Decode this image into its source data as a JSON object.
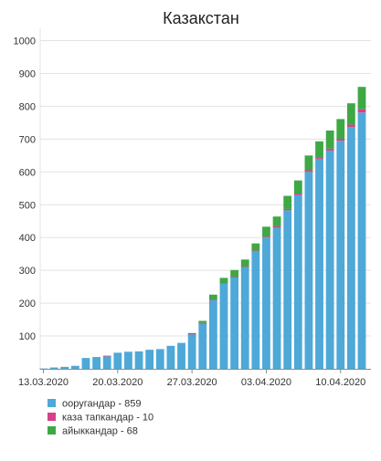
{
  "chart_data": {
    "type": "bar",
    "title": "Казакстан",
    "xlabel": "",
    "ylabel": "",
    "ylim": [
      0,
      1000
    ],
    "y_ticks": [
      100,
      200,
      300,
      400,
      500,
      600,
      700,
      800,
      900,
      1000
    ],
    "x_ticks": [
      "13.03.2020",
      "20.03.2020",
      "27.03.2020",
      "03.04.2020",
      "10.04.2020"
    ],
    "grid": true,
    "stacked": true,
    "categories": [
      "13.03.2020",
      "14.03.2020",
      "15.03.2020",
      "16.03.2020",
      "17.03.2020",
      "18.03.2020",
      "19.03.2020",
      "20.03.2020",
      "21.03.2020",
      "22.03.2020",
      "23.03.2020",
      "24.03.2020",
      "25.03.2020",
      "26.03.2020",
      "27.03.2020",
      "28.03.2020",
      "29.03.2020",
      "30.03.2020",
      "31.03.2020",
      "01.04.2020",
      "02.04.2020",
      "03.04.2020",
      "04.04.2020",
      "05.04.2020",
      "06.04.2020",
      "07.04.2020",
      "08.04.2020",
      "09.04.2020",
      "10.04.2020",
      "11.04.2020",
      "12.04.2020"
    ],
    "series": [
      {
        "name": "ооругандар - 859",
        "color": "#4ea8d8",
        "values": [
          1,
          4,
          6,
          9,
          33,
          36,
          38,
          49,
          52,
          53,
          58,
          60,
          70,
          79,
          106,
          139,
          210,
          260,
          280,
          310,
          358,
          400,
          430,
          483,
          530,
          600,
          640,
          665,
          695,
          737,
          781
        ]
      },
      {
        "name": "каза тапкандар - 10",
        "color": "#d9408a",
        "values": [
          0,
          0,
          0,
          0,
          0,
          0,
          2,
          0,
          0,
          0,
          0,
          0,
          0,
          0,
          1,
          1,
          1,
          1,
          1,
          1,
          2,
          3,
          4,
          4,
          4,
          5,
          5,
          6,
          6,
          7,
          10
        ]
      },
      {
        "name": "айыккандар - 68",
        "color": "#3ea845",
        "values": [
          0,
          0,
          0,
          0,
          0,
          0,
          0,
          0,
          0,
          0,
          0,
          0,
          0,
          0,
          2,
          6,
          15,
          16,
          20,
          22,
          22,
          30,
          30,
          40,
          40,
          45,
          48,
          55,
          60,
          65,
          68
        ]
      }
    ],
    "legend_position": "bottom-left"
  }
}
